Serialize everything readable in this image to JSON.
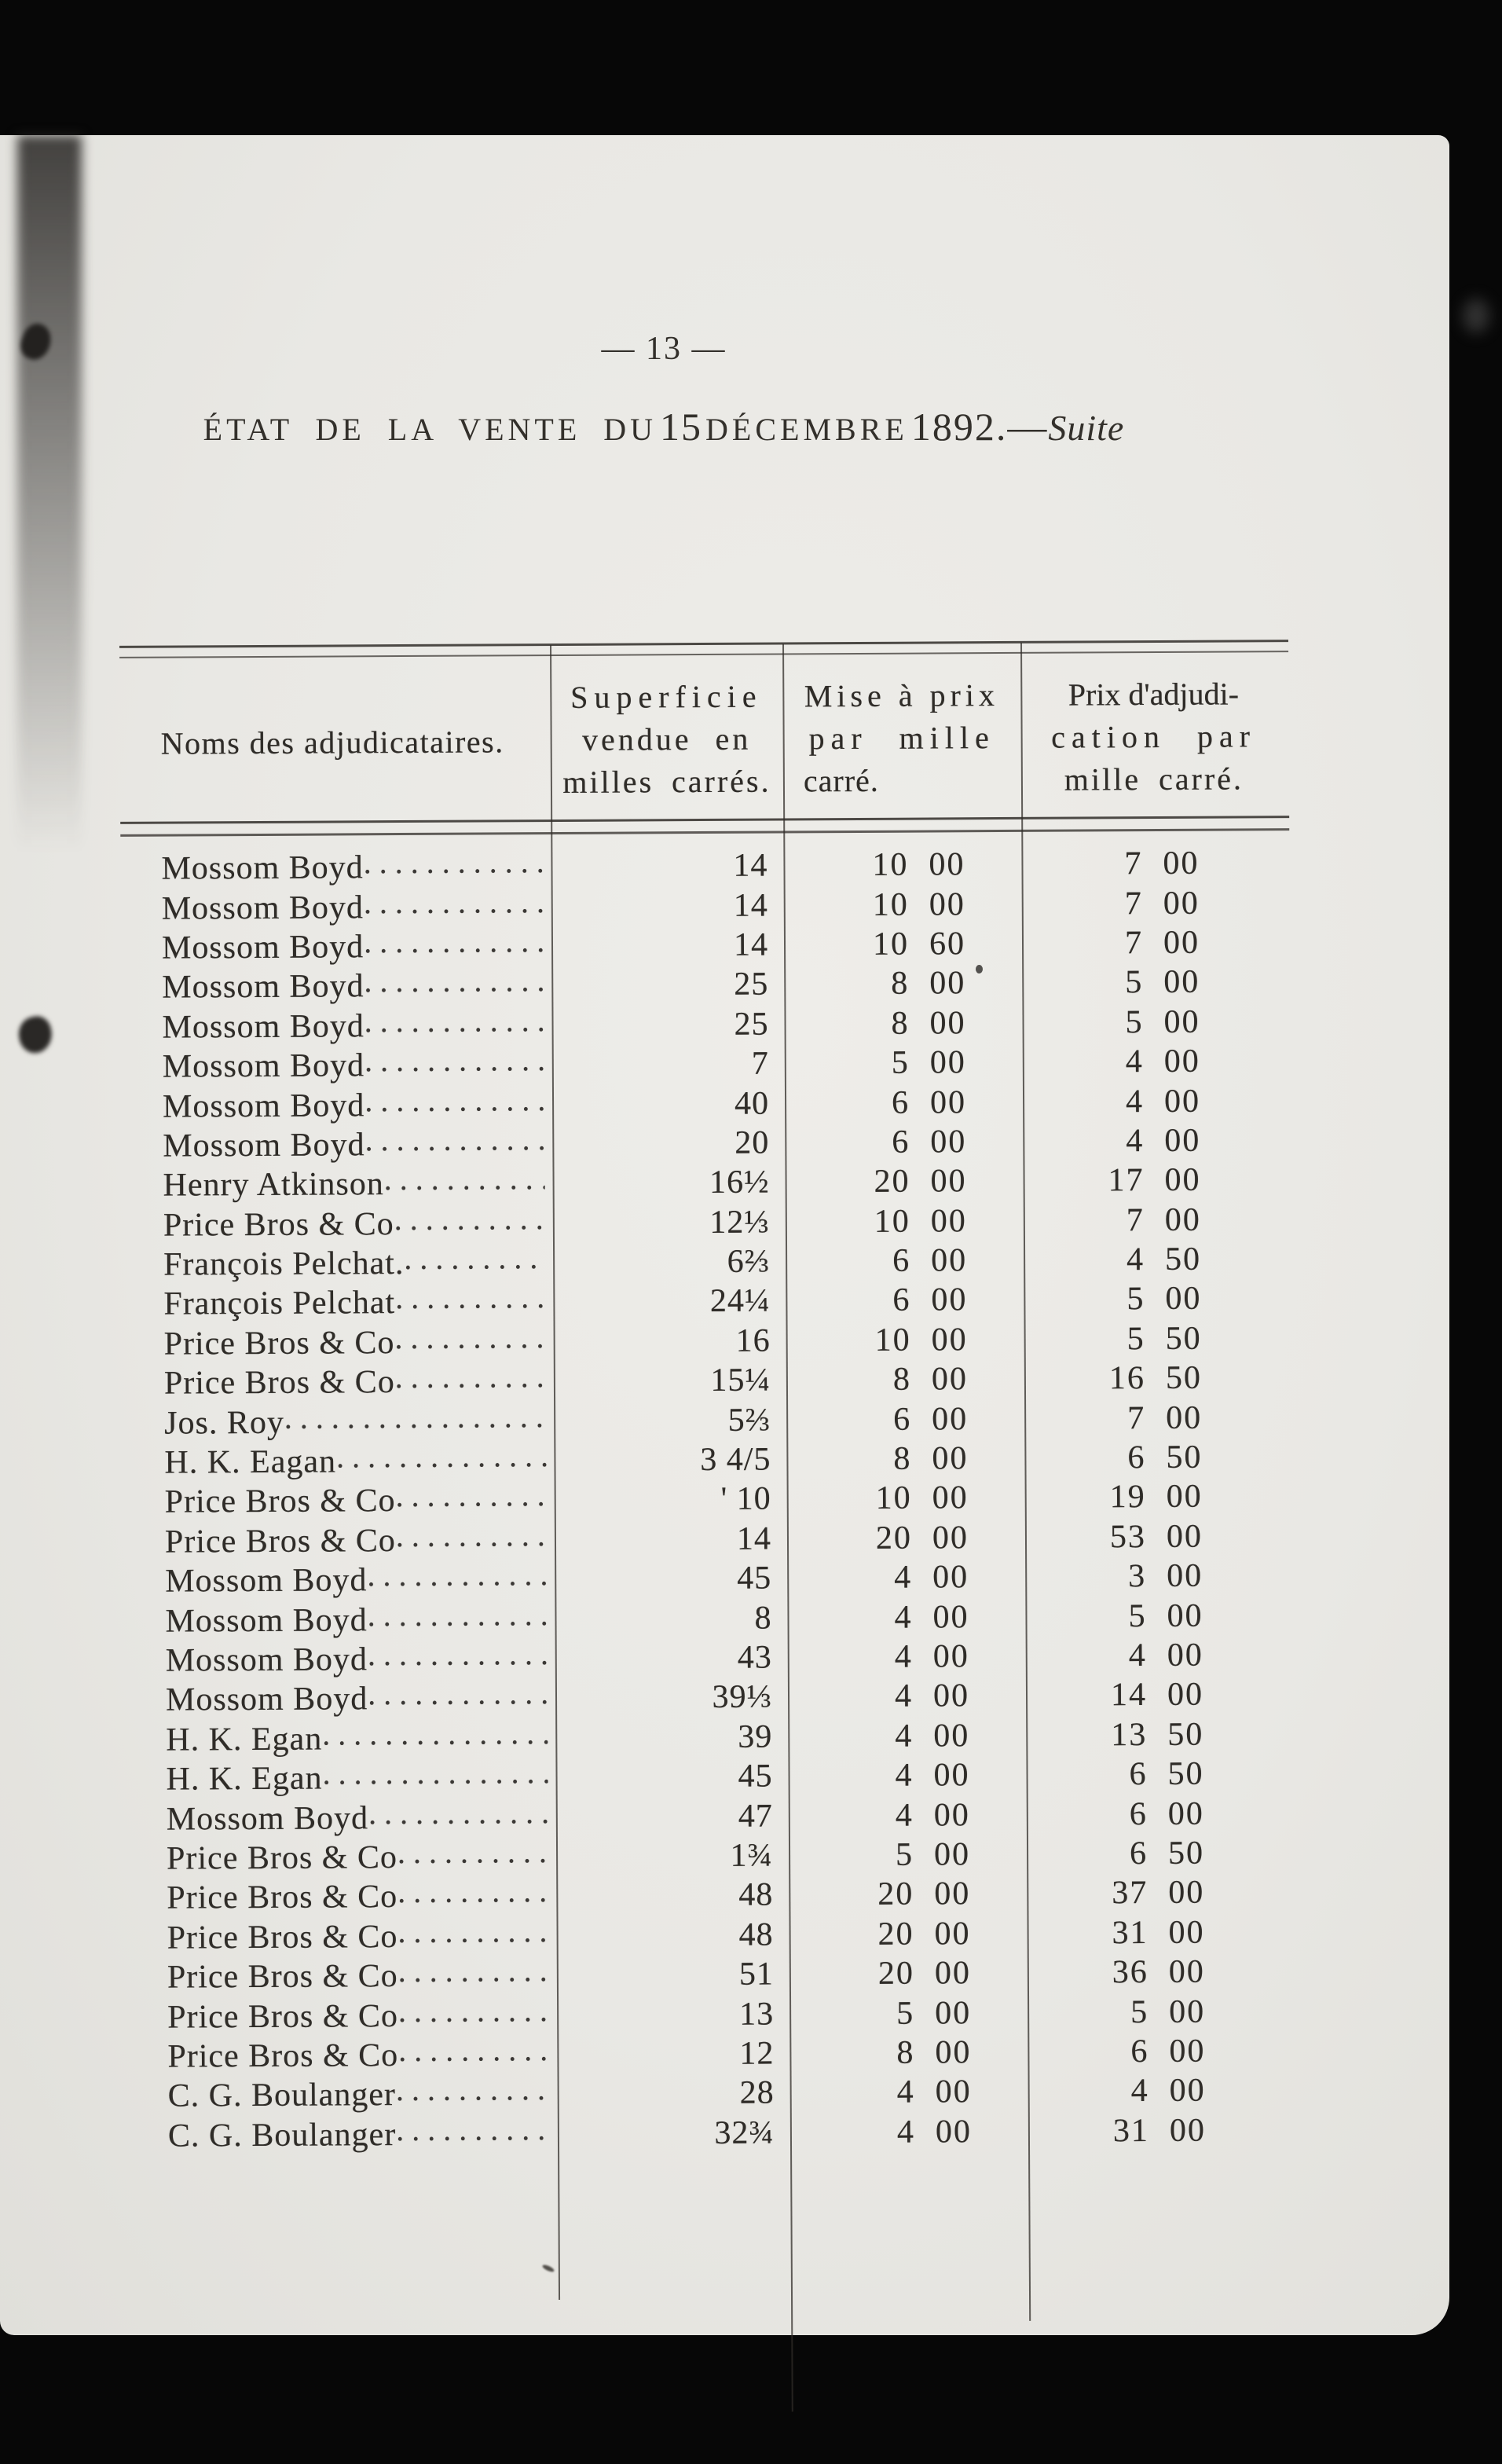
{
  "page": {
    "number_line": "— 13 —",
    "title": {
      "part1": "ÉTAT DE LA VENTE DU",
      "day": "15",
      "part2": "DÉCEMBRE",
      "year": "1892.",
      "dash": "—",
      "suite": "Suite"
    }
  },
  "table": {
    "headers": {
      "names": "Noms des adjudicataires.",
      "superficie": [
        "Superficie",
        "vendue en",
        "milles carrés."
      ],
      "mise": [
        "Mise à prix",
        "par mille",
        "carré."
      ],
      "prix": [
        "Prix d'adjudi-",
        "cation par",
        "mille carré."
      ]
    },
    "rows": [
      {
        "name": "Mossom Boyd",
        "superficie": "14",
        "mise": "10 00",
        "prix": "7 00"
      },
      {
        "name": "Mossom Boyd",
        "superficie": "14",
        "mise": "10 00",
        "prix": "7 00"
      },
      {
        "name": "Mossom Boyd",
        "superficie": "14",
        "mise": "10 60",
        "prix": "7 00"
      },
      {
        "name": "Mossom Boyd",
        "superficie": "25",
        "mise": "8 00",
        "prix": "5 00"
      },
      {
        "name": "Mossom Boyd",
        "superficie": "25",
        "mise": "8 00",
        "prix": "5 00"
      },
      {
        "name": "Mossom Boyd",
        "superficie": "7",
        "mise": "5 00",
        "prix": "4 00"
      },
      {
        "name": "Mossom Boyd",
        "superficie": "40",
        "mise": "6 00",
        "prix": "4 00"
      },
      {
        "name": "Mossom Boyd",
        "superficie": "20",
        "mise": "6 00",
        "prix": "4 00"
      },
      {
        "name": "Henry Atkinson",
        "superficie": "16½",
        "mise": "20 00",
        "prix": "17 00"
      },
      {
        "name": "Price Bros & Co",
        "superficie": "12⅓",
        "mise": "10 00",
        "prix": "7 00"
      },
      {
        "name": "François Pelchat.",
        "superficie": "6⅔",
        "mise": "6 00",
        "prix": "4 50"
      },
      {
        "name": "François Pelchat",
        "superficie": "24¼",
        "mise": "6 00",
        "prix": "5 00"
      },
      {
        "name": "Price Bros & Co",
        "superficie": "16",
        "mise": "10 00",
        "prix": "5 50"
      },
      {
        "name": "Price Bros & Co",
        "superficie": "15¼",
        "mise": "8 00",
        "prix": "16 50"
      },
      {
        "name": "Jos. Roy",
        "superficie": "5⅔",
        "mise": "6 00",
        "prix": "7 00"
      },
      {
        "name": "H. K. Eagan",
        "superficie": "3 4/5",
        "mise": "8 00",
        "prix": "6 50"
      },
      {
        "name": "Price Bros & Co",
        "superficie": "' 10",
        "mise": "10 00",
        "prix": "19 00"
      },
      {
        "name": "Price Bros & Co",
        "superficie": "14",
        "mise": "20 00",
        "prix": "53 00"
      },
      {
        "name": "Mossom Boyd",
        "superficie": "45",
        "mise": "4 00",
        "prix": "3 00"
      },
      {
        "name": "Mossom Boyd",
        "superficie": "8",
        "mise": "4 00",
        "prix": "5 00"
      },
      {
        "name": "Mossom Boyd",
        "superficie": "43",
        "mise": "4 00",
        "prix": "4 00"
      },
      {
        "name": "Mossom Boyd",
        "superficie": "39⅓",
        "mise": "4 00",
        "prix": "14 00"
      },
      {
        "name": "H. K. Egan",
        "superficie": "39",
        "mise": "4 00",
        "prix": "13 50"
      },
      {
        "name": "H. K. Egan",
        "superficie": "45",
        "mise": "4 00",
        "prix": "6 50"
      },
      {
        "name": "Mossom Boyd",
        "superficie": "47",
        "mise": "4 00",
        "prix": "6 00"
      },
      {
        "name": "Price Bros & Co",
        "superficie": "1¾",
        "mise": "5 00",
        "prix": "6 50"
      },
      {
        "name": "Price Bros & Co",
        "superficie": "48",
        "mise": "20 00",
        "prix": "37 00"
      },
      {
        "name": "Price Bros & Co",
        "superficie": "48",
        "mise": "20 00",
        "prix": "31 00"
      },
      {
        "name": "Price Bros & Co",
        "superficie": "51",
        "mise": "20 00",
        "prix": "36 00"
      },
      {
        "name": "Price Bros & Co",
        "superficie": "13",
        "mise": "5 00",
        "prix": "5 00"
      },
      {
        "name": "Price Bros & Co",
        "superficie": "12",
        "mise": "8 00",
        "prix": "6 00"
      },
      {
        "name": "C. G. Boulanger",
        "superficie": "28",
        "mise": "4 00",
        "prix": "4 00"
      },
      {
        "name": "C. G. Boulanger",
        "superficie": "32¾",
        "mise": "4 00",
        "prix": "31 00"
      }
    ]
  }
}
